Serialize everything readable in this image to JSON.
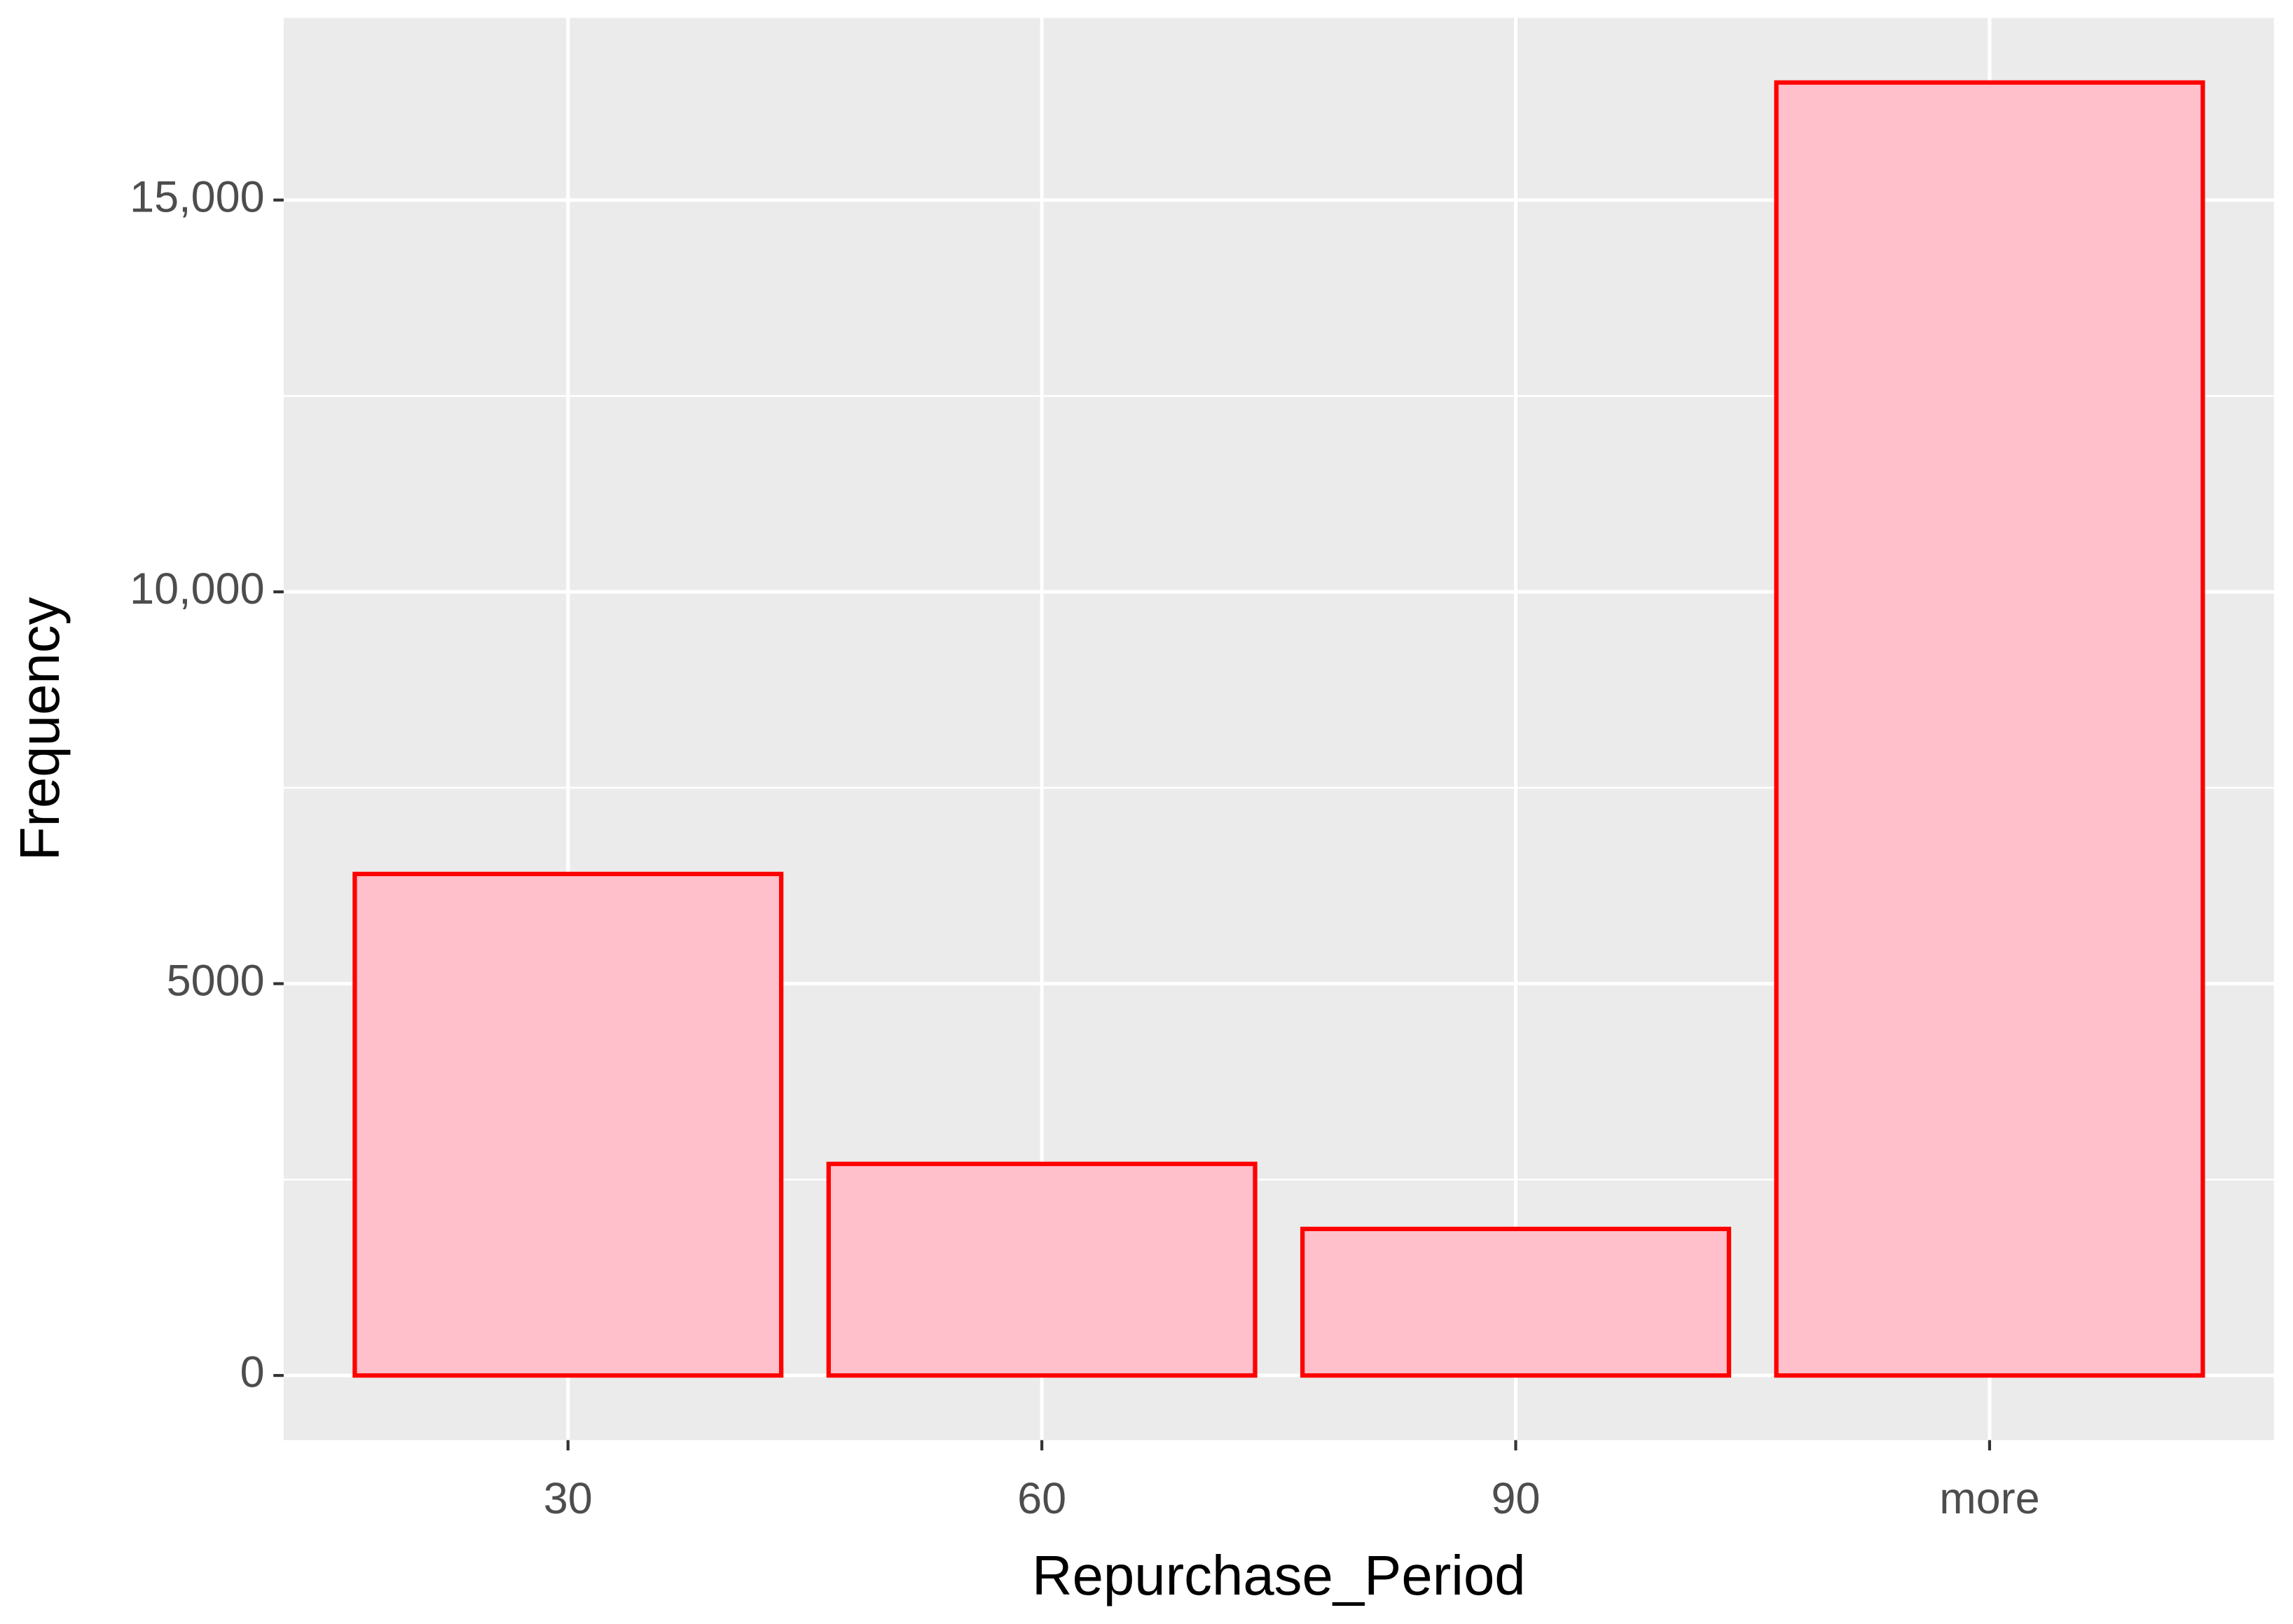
{
  "chart_data": {
    "type": "bar",
    "x_label": "Repurchase_Period",
    "y_label": "Frequency",
    "categories": [
      "30",
      "60",
      "90",
      "more"
    ],
    "values": [
      6400,
      2700,
      1870,
      16500
    ],
    "fill": "#ffc0cb",
    "edge_color": "#ff0000",
    "ylim": [
      -825,
      17325
    ],
    "yticks": [
      0,
      5000,
      {
        "value": 10000,
        "label": "10,000"
      },
      {
        "value": 15000,
        "label": "15,000"
      }
    ],
    "grid": true
  }
}
